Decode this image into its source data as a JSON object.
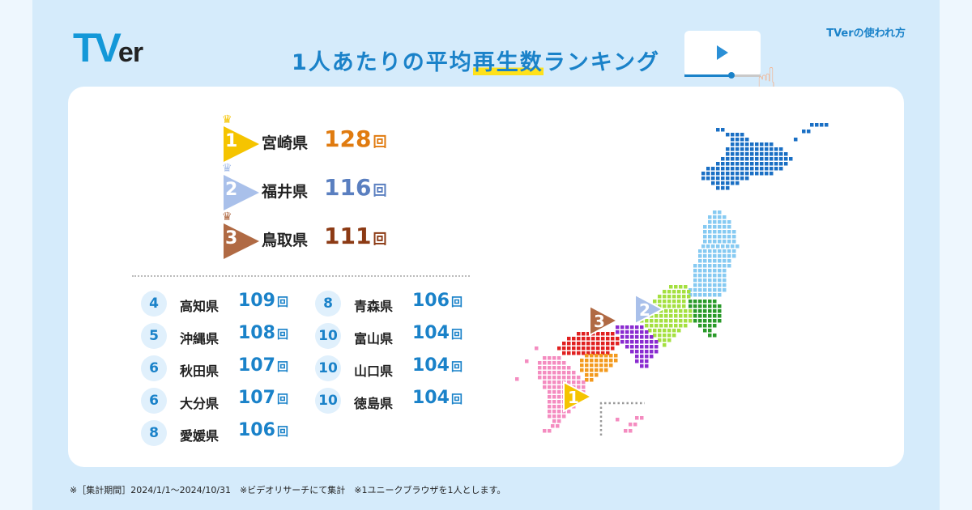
{
  "header": {
    "logo": "TVer",
    "title_pre": "1人あたりの平均",
    "title_hl": "再生数",
    "title_post": "ランキング",
    "howto_link": "TVerの使われ方"
  },
  "unit": "回",
  "top3": [
    {
      "rank": "1",
      "pref": "宮崎県",
      "value": "128",
      "color": "#f5c400",
      "text_color": "#e07b10"
    },
    {
      "rank": "2",
      "pref": "福井県",
      "value": "116",
      "color": "#a9c0ea",
      "text_color": "#5a7fc0"
    },
    {
      "rank": "3",
      "pref": "鳥取県",
      "value": "111",
      "color": "#b06a44",
      "text_color": "#8c3a14"
    }
  ],
  "ranking_left": [
    {
      "rank": "4",
      "pref": "高知県",
      "value": "109"
    },
    {
      "rank": "5",
      "pref": "沖縄県",
      "value": "108"
    },
    {
      "rank": "6",
      "pref": "秋田県",
      "value": "107"
    },
    {
      "rank": "6",
      "pref": "大分県",
      "value": "107"
    },
    {
      "rank": "8",
      "pref": "愛媛県",
      "value": "106"
    }
  ],
  "ranking_right": [
    {
      "rank": "8",
      "pref": "青森県",
      "value": "106"
    },
    {
      "rank": "10",
      "pref": "富山県",
      "value": "104"
    },
    {
      "rank": "10",
      "pref": "山口県",
      "value": "104"
    },
    {
      "rank": "10",
      "pref": "徳島県",
      "value": "104"
    }
  ],
  "map_colors": {
    "hokkaido": "#1a6fc4",
    "tohoku": "#86caf2",
    "kanto": "#2a9a2a",
    "chubu": "#a4e040",
    "kinki": "#8a2bd0",
    "chugoku": "#e02020",
    "shikoku": "#f39a1e",
    "kyushu": "#f48cc0",
    "okinawa_frame": "#999999"
  },
  "footer": "※［集計期間］2024/1/1〜2024/10/31　※ビデオリサーチにて集計　※1ユニークブラウザを1人とします。"
}
